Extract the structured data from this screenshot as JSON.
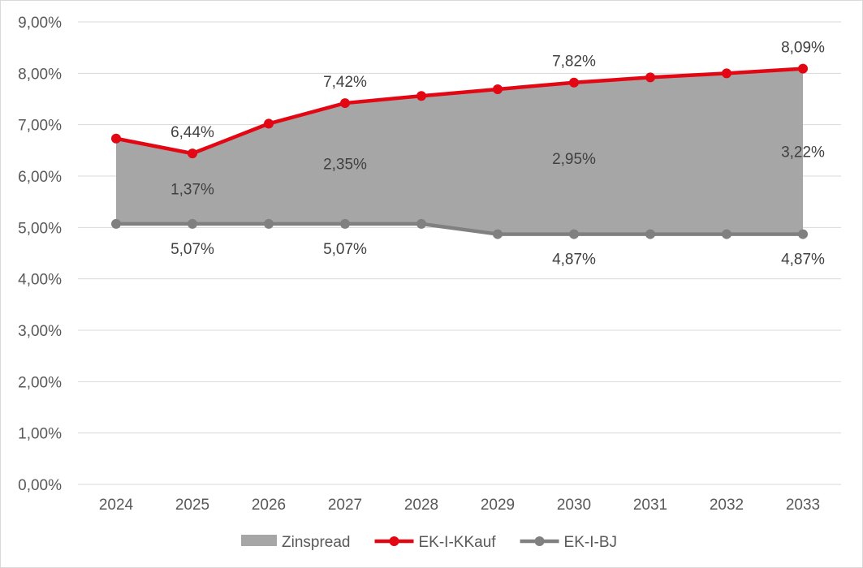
{
  "chart_data": {
    "type": "line",
    "categories": [
      "2024",
      "2025",
      "2026",
      "2027",
      "2028",
      "2029",
      "2030",
      "2031",
      "2032",
      "2033"
    ],
    "ylim": [
      0,
      9
    ],
    "yticks": [
      "0,00%",
      "1,00%",
      "2,00%",
      "3,00%",
      "4,00%",
      "5,00%",
      "6,00%",
      "7,00%",
      "8,00%",
      "9,00%"
    ],
    "grid": true,
    "legend_position": "bottom",
    "series": [
      {
        "name": "Zinspread",
        "kind": "area-between",
        "color": "#a6a6a6",
        "values": [
          1.66,
          1.37,
          1.95,
          2.35,
          2.49,
          2.82,
          2.95,
          3.05,
          3.13,
          3.22
        ],
        "labels": [
          {
            "index": 1,
            "text": "1,37%"
          },
          {
            "index": 3,
            "text": "2,35%"
          },
          {
            "index": 6,
            "text": "2,95%"
          },
          {
            "index": 9,
            "text": "3,22%"
          }
        ]
      },
      {
        "name": "EK-I-KKauf",
        "kind": "line",
        "color": "#e30613",
        "values": [
          6.73,
          6.44,
          7.02,
          7.42,
          7.56,
          7.69,
          7.82,
          7.92,
          8.0,
          8.09
        ],
        "labels": [
          {
            "index": 1,
            "text": "6,44%"
          },
          {
            "index": 3,
            "text": "7,42%"
          },
          {
            "index": 6,
            "text": "7,82%"
          },
          {
            "index": 9,
            "text": "8,09%"
          }
        ]
      },
      {
        "name": "EK-I-BJ",
        "kind": "line",
        "color": "#808080",
        "values": [
          5.07,
          5.07,
          5.07,
          5.07,
          5.07,
          4.87,
          4.87,
          4.87,
          4.87,
          4.87
        ],
        "labels": [
          {
            "index": 1,
            "text": "5,07%"
          },
          {
            "index": 3,
            "text": "5,07%"
          },
          {
            "index": 6,
            "text": "4,87%"
          },
          {
            "index": 9,
            "text": "4,87%"
          }
        ]
      }
    ]
  }
}
